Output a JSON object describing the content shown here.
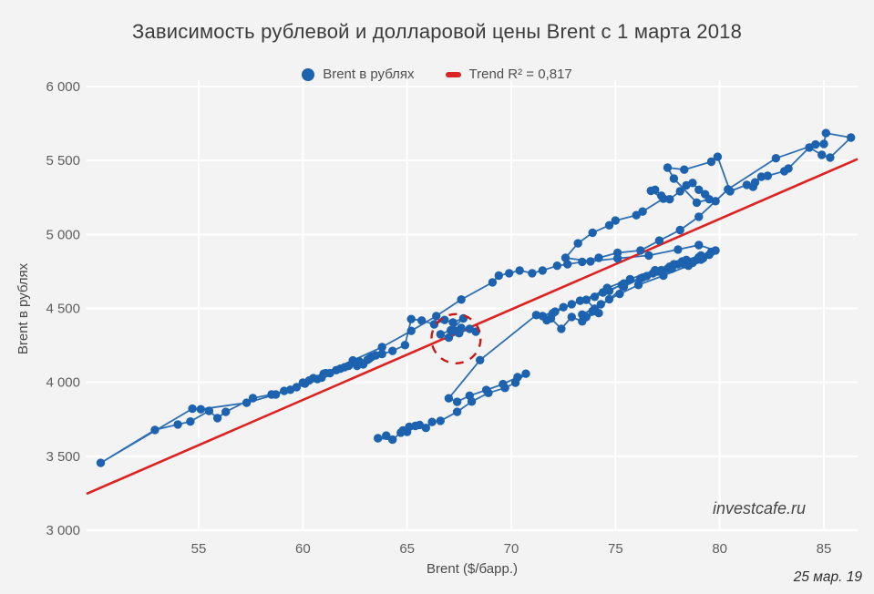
{
  "title": "Зависимость рублевой и долларовой цены Brent с 1 марта 2018",
  "legend": {
    "series_label": "Brent в рублях",
    "trend_label": "Trend R² = 0,817"
  },
  "axes": {
    "x_title": "Brent ($/барр.)",
    "y_title": "Brent в рублях"
  },
  "watermark": "investcafe.ru",
  "date_label": "25 мар. 19",
  "colors": {
    "background": "#f2f3f2",
    "gridline": "#ffffff",
    "series_marker": "#1d62ae",
    "series_line": "#2f6fb3",
    "trend": "#dd2222",
    "annotation": "#cd1717",
    "title_text": "#3c3c3c",
    "tick_text": "#5f5f5f"
  },
  "chart_data": {
    "type": "scatter",
    "subtype": "connected-scatter",
    "title": "Зависимость рублевой и долларовой цены Brent с 1 марта 2018",
    "xlabel": "Brent ($/барр.)",
    "ylabel": "Brent в рублях",
    "xlim": [
      49.6,
      86.6
    ],
    "ylim": [
      2920,
      6040
    ],
    "grid": true,
    "legend_position": "top",
    "x_ticks": [
      55,
      60,
      65,
      70,
      75,
      80,
      85
    ],
    "y_tick_values": [
      3000,
      3500,
      4000,
      4500,
      5000,
      5500,
      6000
    ],
    "y_tick_labels": [
      "3 000",
      "3 500",
      "4 000",
      "4 500",
      "5 000",
      "5 500",
      "6 000"
    ],
    "trend": {
      "name": "Trend R² = 0,817",
      "r2_label": "0,817",
      "from": [
        49.62,
        3246
      ],
      "to": [
        86.62,
        5510
      ]
    },
    "annotation_circle": {
      "cx": 67.35,
      "cy": 4295,
      "radius_px": 27
    },
    "series": [
      {
        "name": "Brent в рублях",
        "points": [
          [
            64.0,
            3640
          ],
          [
            63.6,
            3622
          ],
          [
            64.3,
            3612
          ],
          [
            64.7,
            3660
          ],
          [
            65.1,
            3700
          ],
          [
            64.8,
            3675
          ],
          [
            65.4,
            3705
          ],
          [
            65.0,
            3665
          ],
          [
            65.6,
            3712
          ],
          [
            65.9,
            3692
          ],
          [
            66.2,
            3732
          ],
          [
            66.6,
            3740
          ],
          [
            67.4,
            3800
          ],
          [
            68.1,
            3870
          ],
          [
            68.9,
            3928
          ],
          [
            69.7,
            3962
          ],
          [
            70.2,
            3998
          ],
          [
            70.7,
            4058
          ],
          [
            70.3,
            4035
          ],
          [
            69.6,
            3988
          ],
          [
            68.8,
            3948
          ],
          [
            68.0,
            3910
          ],
          [
            67.4,
            3868
          ],
          [
            67.0,
            3892
          ],
          [
            68.5,
            4150
          ],
          [
            71.2,
            4455
          ],
          [
            71.7,
            4420
          ],
          [
            72.1,
            4478
          ],
          [
            71.9,
            4432
          ],
          [
            72.4,
            4362
          ],
          [
            72.9,
            4442
          ],
          [
            73.4,
            4412
          ],
          [
            73.9,
            4482
          ],
          [
            74.2,
            4468
          ],
          [
            73.6,
            4442
          ],
          [
            74.7,
            4562
          ],
          [
            75.4,
            4648
          ],
          [
            76.3,
            4708
          ],
          [
            77.2,
            4758
          ],
          [
            78.0,
            4798
          ],
          [
            78.9,
            4828
          ],
          [
            79.5,
            4862
          ],
          [
            79.1,
            4830
          ],
          [
            78.3,
            4798
          ],
          [
            77.5,
            4768
          ],
          [
            76.8,
            4738
          ],
          [
            77.6,
            4782
          ],
          [
            78.3,
            4812
          ],
          [
            79.0,
            4846
          ],
          [
            79.6,
            4882
          ],
          [
            78.2,
            4818
          ],
          [
            76.9,
            4758
          ],
          [
            75.7,
            4698
          ],
          [
            74.6,
            4638
          ],
          [
            73.6,
            4558
          ],
          [
            74.0,
            4498
          ],
          [
            73.4,
            4458
          ],
          [
            74.3,
            4528
          ],
          [
            75.2,
            4598
          ],
          [
            76.1,
            4658
          ],
          [
            77.3,
            4722
          ],
          [
            78.5,
            4788
          ],
          [
            79.2,
            4838
          ],
          [
            78.7,
            4808
          ],
          [
            77.7,
            4768
          ],
          [
            76.5,
            4718
          ],
          [
            75.4,
            4668
          ],
          [
            74.7,
            4618
          ],
          [
            74.0,
            4578
          ],
          [
            72.9,
            4528
          ],
          [
            72.0,
            4468
          ],
          [
            71.5,
            4448
          ],
          [
            72.5,
            4508
          ],
          [
            73.3,
            4552
          ],
          [
            74.4,
            4608
          ],
          [
            75.3,
            4658
          ],
          [
            76.2,
            4702
          ],
          [
            77.0,
            4748
          ],
          [
            77.8,
            4798
          ],
          [
            78.4,
            4828
          ],
          [
            79.1,
            4858
          ],
          [
            79.8,
            4892
          ],
          [
            79.0,
            4928
          ],
          [
            78.0,
            4898
          ],
          [
            76.6,
            4858
          ],
          [
            75.1,
            4838
          ],
          [
            73.8,
            4818
          ],
          [
            72.6,
            4842
          ],
          [
            73.2,
            4940
          ],
          [
            73.9,
            5012
          ],
          [
            74.7,
            5062
          ],
          [
            75.0,
            5094
          ],
          [
            76.0,
            5130
          ],
          [
            76.3,
            5155
          ],
          [
            77.3,
            5242
          ],
          [
            76.7,
            5295
          ],
          [
            76.9,
            5302
          ],
          [
            77.2,
            5262
          ],
          [
            77.6,
            5238
          ],
          [
            78.1,
            5292
          ],
          [
            78.4,
            5332
          ],
          [
            78.7,
            5348
          ],
          [
            79.0,
            5302
          ],
          [
            79.3,
            5272
          ],
          [
            79.5,
            5238
          ],
          [
            78.9,
            5215
          ],
          [
            77.8,
            5378
          ],
          [
            77.5,
            5452
          ],
          [
            78.3,
            5438
          ],
          [
            79.6,
            5492
          ],
          [
            79.9,
            5525
          ],
          [
            80.5,
            5292
          ],
          [
            81.3,
            5335
          ],
          [
            81.6,
            5322
          ],
          [
            81.7,
            5352
          ],
          [
            82.0,
            5390
          ],
          [
            82.3,
            5396
          ],
          [
            83.1,
            5428
          ],
          [
            83.3,
            5446
          ],
          [
            84.3,
            5588
          ],
          [
            84.9,
            5538
          ],
          [
            85.3,
            5520
          ],
          [
            86.3,
            5655
          ],
          [
            85.1,
            5685
          ],
          [
            85.0,
            5612
          ],
          [
            84.6,
            5608
          ],
          [
            82.7,
            5515
          ],
          [
            80.4,
            5305
          ],
          [
            79.8,
            5225
          ],
          [
            79.0,
            5120
          ],
          [
            78.1,
            5030
          ],
          [
            77.1,
            4958
          ],
          [
            76.2,
            4892
          ],
          [
            75.1,
            4876
          ],
          [
            74.2,
            4842
          ],
          [
            73.4,
            4815
          ],
          [
            72.7,
            4798
          ],
          [
            72.2,
            4788
          ],
          [
            71.5,
            4756
          ],
          [
            71.0,
            4738
          ],
          [
            70.4,
            4756
          ],
          [
            69.9,
            4738
          ],
          [
            69.4,
            4722
          ],
          [
            69.1,
            4676
          ],
          [
            67.6,
            4560
          ],
          [
            66.4,
            4448
          ],
          [
            65.2,
            4348
          ],
          [
            63.8,
            4238
          ],
          [
            62.4,
            4148
          ],
          [
            61.0,
            4058
          ],
          [
            60.0,
            3998
          ],
          [
            59.1,
            3942
          ],
          [
            60.3,
            4012
          ],
          [
            61.1,
            4062
          ],
          [
            60.5,
            4028
          ],
          [
            59.7,
            3968
          ],
          [
            58.7,
            3918
          ],
          [
            57.3,
            3862
          ],
          [
            55.1,
            3818
          ],
          [
            54.7,
            3822
          ],
          [
            50.3,
            3455
          ],
          [
            52.9,
            3678
          ],
          [
            54.0,
            3715
          ],
          [
            54.6,
            3735
          ],
          [
            55.5,
            3807
          ],
          [
            55.9,
            3758
          ],
          [
            56.3,
            3800
          ],
          [
            57.6,
            3893
          ],
          [
            58.5,
            3918
          ],
          [
            59.4,
            3950
          ],
          [
            60.1,
            3992
          ],
          [
            60.7,
            4022
          ],
          [
            61.3,
            4062
          ],
          [
            60.9,
            4032
          ],
          [
            61.6,
            4082
          ],
          [
            62.2,
            4112
          ],
          [
            61.8,
            4092
          ],
          [
            62.5,
            4132
          ],
          [
            62.0,
            4102
          ],
          [
            62.7,
            4142
          ],
          [
            63.2,
            4162
          ],
          [
            62.9,
            4122
          ],
          [
            63.5,
            4182
          ],
          [
            63.1,
            4152
          ],
          [
            62.6,
            4112
          ],
          [
            63.3,
            4172
          ],
          [
            63.8,
            4192
          ],
          [
            64.3,
            4212
          ],
          [
            64.9,
            4252
          ],
          [
            65.2,
            4428
          ],
          [
            65.7,
            4418
          ],
          [
            66.3,
            4392
          ],
          [
            66.8,
            4422
          ],
          [
            67.2,
            4405
          ],
          [
            67.7,
            4432
          ],
          [
            67.1,
            4352
          ],
          [
            66.6,
            4325
          ],
          [
            67.0,
            4302
          ],
          [
            67.5,
            4332
          ],
          [
            68.0,
            4362
          ],
          [
            68.3,
            4342
          ],
          [
            67.6,
            4368
          ],
          [
            67.3,
            4348
          ]
        ]
      }
    ]
  }
}
